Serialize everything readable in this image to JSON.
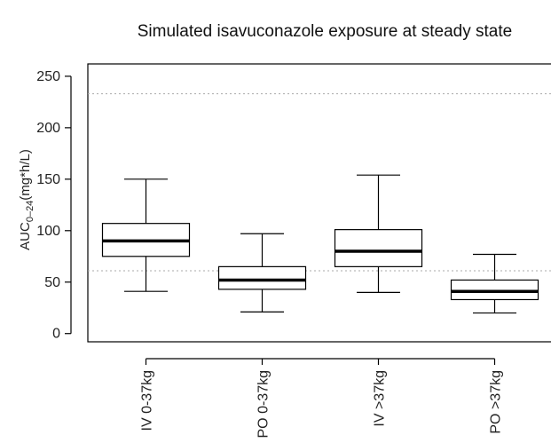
{
  "chart_data": {
    "type": "boxplot",
    "title": "Simulated isavuconazole exposure at steady state",
    "ylabel": {
      "main": "AUC",
      "sub": "0–24",
      "unit": "(mg*h/L)"
    },
    "xlabel": "",
    "ylim": [
      -8,
      262
    ],
    "yticks": [
      0,
      50,
      100,
      150,
      200,
      250
    ],
    "categories": [
      "IV 0-37kg",
      "PO 0-37kg",
      "IV >37kg",
      "PO >37kg"
    ],
    "boxes": [
      {
        "name": "IV 0-37kg",
        "whisker_low": 41,
        "q1": 75,
        "median": 90,
        "q3": 107,
        "whisker_high": 150
      },
      {
        "name": "PO 0-37kg",
        "whisker_low": 21,
        "q1": 43,
        "median": 52,
        "q3": 65,
        "whisker_high": 97
      },
      {
        "name": "IV >37kg",
        "whisker_low": 40,
        "q1": 65,
        "median": 80,
        "q3": 101,
        "whisker_high": 154
      },
      {
        "name": "PO >37kg",
        "whisker_low": 20,
        "q1": 33,
        "median": 41,
        "q3": 52,
        "whisker_high": 77
      }
    ],
    "reference_lines": [
      61,
      233
    ],
    "reference_line_style": "dotted",
    "grid": false,
    "colors": {
      "box": "#000000",
      "reference": "#aaaaaa",
      "axis": "#000000"
    }
  }
}
